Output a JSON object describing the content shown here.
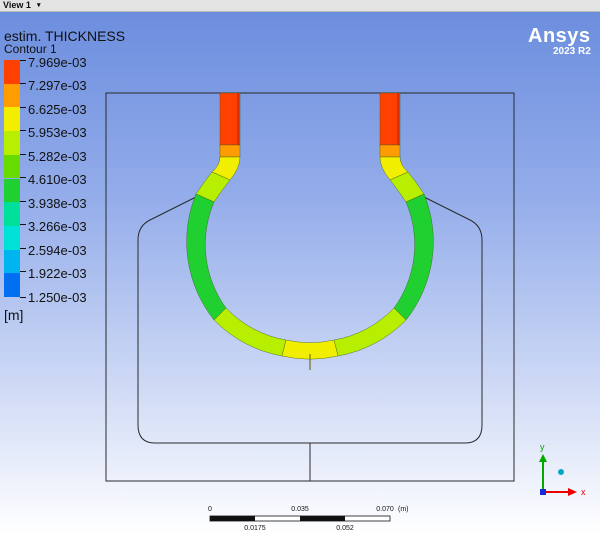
{
  "window": {
    "title": "View 1",
    "menu_arrow": "▾"
  },
  "contour": {
    "variable": "estim. THICKNESS",
    "name": "Contour 1",
    "unit": "[m]"
  },
  "legend": {
    "levels": [
      "7.969e-03",
      "7.297e-03",
      "6.625e-03",
      "5.953e-03",
      "5.282e-03",
      "4.610e-03",
      "3.938e-03",
      "3.266e-03",
      "2.594e-03",
      "1.922e-03",
      "1.250e-03"
    ],
    "colors": [
      "#ff4000",
      "#ff9c00",
      "#f2ee00",
      "#b8ee00",
      "#68dc00",
      "#20d030",
      "#00e09a",
      "#00e2d8",
      "#00b4f0",
      "#0070f0",
      "#0018f0"
    ]
  },
  "brand": {
    "name": "Ansys",
    "version": "2023 R2"
  },
  "scale": {
    "top_labels": [
      "0",
      "0.035",
      "0.070"
    ],
    "bottom_labels": [
      "0.0175",
      "0.052"
    ],
    "unit": "(m)"
  },
  "axes": {
    "x_label": "x",
    "y_label": "y",
    "x_color": "#ee0000",
    "y_color": "#00aa00",
    "z_color": "#00a8c8"
  }
}
